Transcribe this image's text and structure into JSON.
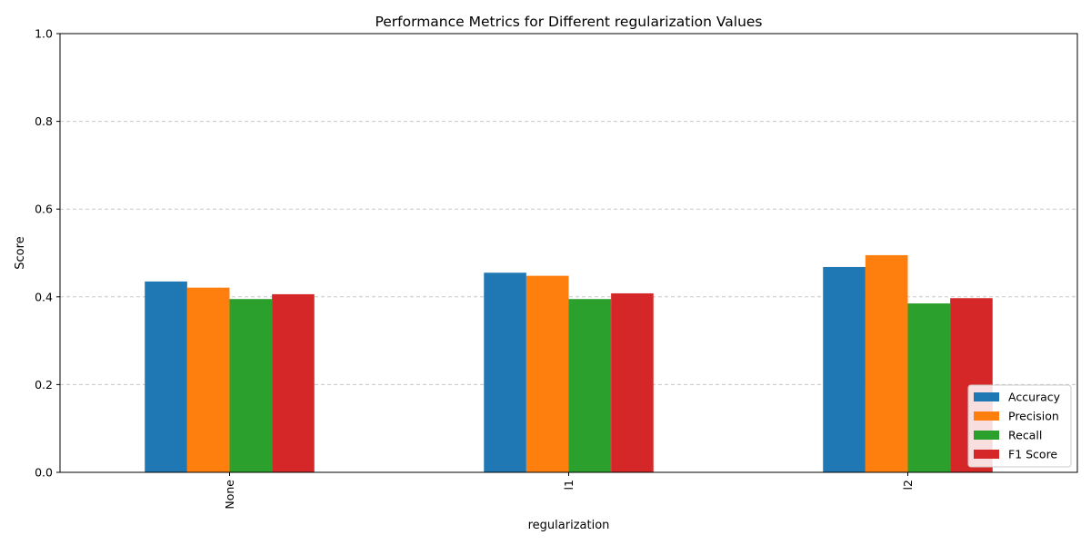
{
  "chart_data": {
    "type": "bar",
    "title": "Performance Metrics for Different regularization Values",
    "xlabel": "regularization",
    "ylabel": "Score",
    "categories": [
      "None",
      "l1",
      "l2"
    ],
    "ylim": [
      0,
      1
    ],
    "yticks": [
      "0.0",
      "0.2",
      "0.4",
      "0.6",
      "0.8",
      "1.0"
    ],
    "grid": "y-dashed",
    "legend_position": "lower-right",
    "series": [
      {
        "name": "Accuracy",
        "color": "#1f77b4",
        "values": [
          0.435,
          0.455,
          0.468
        ]
      },
      {
        "name": "Precision",
        "color": "#ff7f0e",
        "values": [
          0.421,
          0.448,
          0.495
        ]
      },
      {
        "name": "Recall",
        "color": "#2ca02c",
        "values": [
          0.395,
          0.395,
          0.385
        ]
      },
      {
        "name": "F1 Score",
        "color": "#d62728",
        "values": [
          0.406,
          0.408,
          0.397
        ]
      }
    ]
  }
}
